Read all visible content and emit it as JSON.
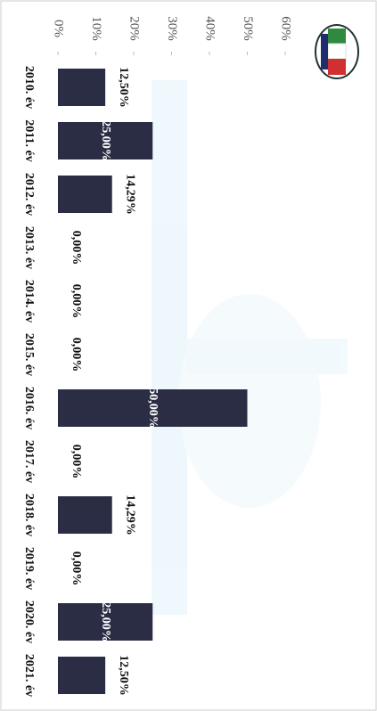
{
  "chart_data": {
    "type": "bar",
    "categories": [
      "2010. év",
      "2011. év",
      "2012. év",
      "2013. év",
      "2014. év",
      "2015. év",
      "2016. év",
      "2017. év",
      "2018. év",
      "2019. év",
      "2020. év",
      "2021. év"
    ],
    "values": [
      12.5,
      25,
      14.29,
      0,
      0,
      0,
      50,
      0,
      14.29,
      0,
      25,
      12.5
    ],
    "value_labels": [
      "12,50%",
      "25,00%",
      "14,29%",
      "0,00%",
      "0,00%",
      "0,00%",
      "50,00%",
      "0,00%",
      "14,29%",
      "0,00%",
      "25,00%",
      "12,50%"
    ],
    "color": "#2b2d45",
    "ylim": [
      0,
      60
    ],
    "yticks": [
      {
        "value": 0,
        "label": "0%"
      },
      {
        "value": 10,
        "label": "10%"
      },
      {
        "value": 20,
        "label": "20%"
      },
      {
        "value": 30,
        "label": "30%"
      },
      {
        "value": 40,
        "label": "40%"
      },
      {
        "value": 50,
        "label": "50%"
      },
      {
        "value": 60,
        "label": "60%"
      }
    ]
  }
}
